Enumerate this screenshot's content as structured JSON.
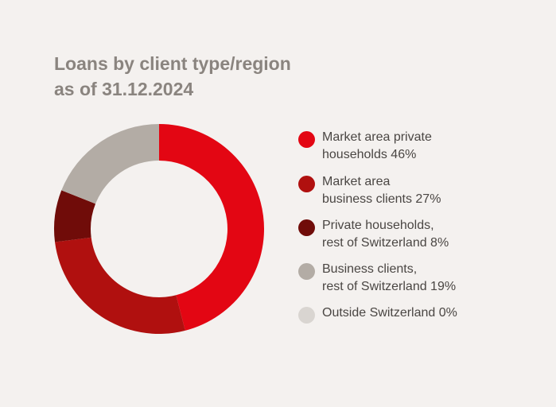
{
  "title": {
    "line1": "Loans by client type/region",
    "line2": "as of 31.12.2024"
  },
  "chart_data": {
    "type": "pie",
    "title": "Loans by client type/region as of 31.12.2024",
    "categories": [
      "Market area private households",
      "Market area business clients",
      "Private households, rest of Switzerland",
      "Business clients, rest of Switzerland",
      "Outside Switzerland"
    ],
    "values": [
      46,
      27,
      8,
      19,
      0
    ],
    "unit": "%",
    "colors": [
      "#e30613",
      "#b0100f",
      "#700c09",
      "#b3aca5",
      "#d9d5d1"
    ],
    "legend_placement": "right"
  },
  "legend": [
    {
      "line1": "Market area private",
      "line2": "households 46%"
    },
    {
      "line1": "Market area",
      "line2": "business clients 27%"
    },
    {
      "line1": "Private households,",
      "line2": "rest of Switzerland 8%"
    },
    {
      "line1": "Business clients,",
      "line2": "rest of Switzerland 19%"
    },
    {
      "line1": "Outside Switzerland 0%",
      "line2": ""
    }
  ]
}
